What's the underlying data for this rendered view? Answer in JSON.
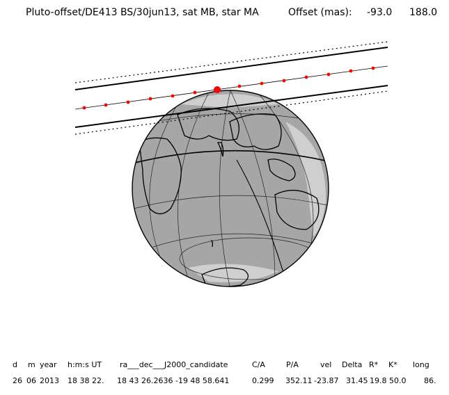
{
  "header": {
    "title": "Pluto-offset/DE413 BS/30jun13, sat MB, star MA",
    "offset_label": "Offset (mas):",
    "offset_x": "-93.0",
    "offset_y": "188.0"
  },
  "table": {
    "headers": [
      "d",
      "m",
      "year",
      "h:m:s UT",
      "ra___dec___J2000_candidate",
      "C/A",
      "P/A",
      "vel",
      "Delta",
      "R*",
      "K*",
      "long"
    ],
    "values": [
      "26",
      "06",
      "2013",
      "18 38 22.",
      "18 43 26.2636 -19 48 58.641",
      "0.299",
      "352.11",
      "-23.87",
      "31.45",
      "19.8",
      "50.0",
      "86."
    ]
  },
  "colors": {
    "globe_fill": "#a6a6a6",
    "globe_light": "#cfcfcf",
    "land_outline": "#000000",
    "track_dot": "#ff0000"
  }
}
